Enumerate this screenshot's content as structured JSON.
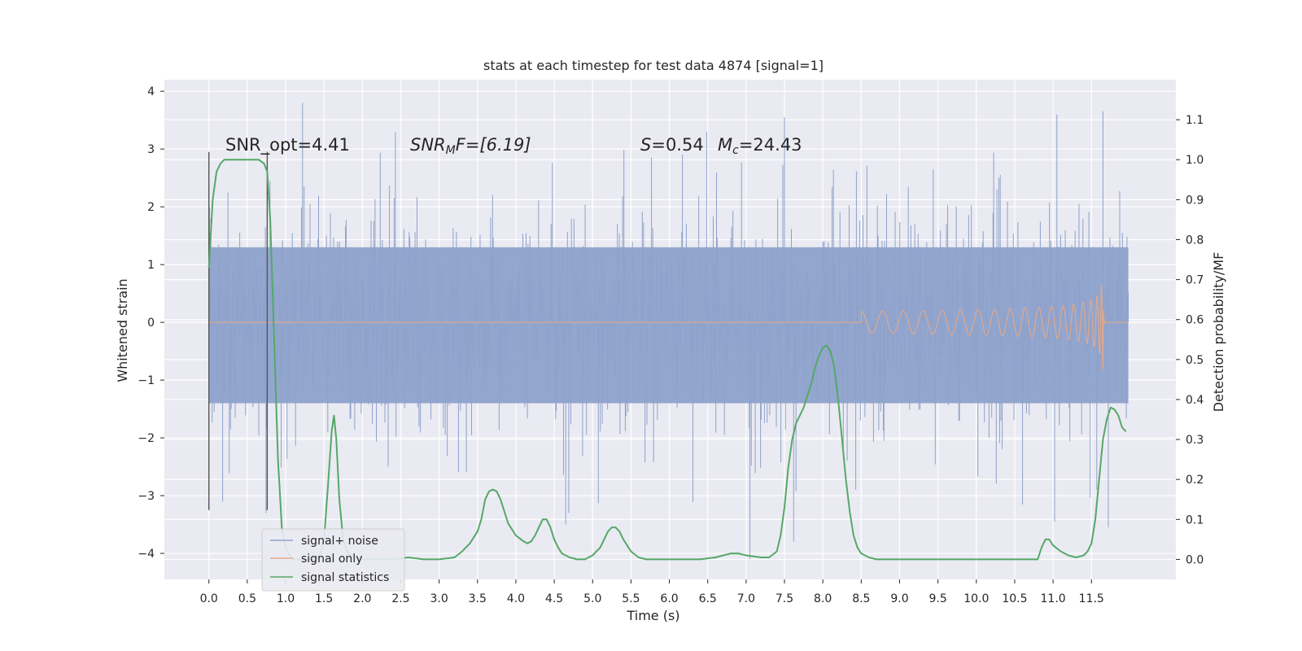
{
  "chart_data": {
    "type": "line",
    "title": "stats at each timestep for test data 4874 [signal=1]",
    "xlabel": "Time (s)",
    "ylabel": "Whitened strain",
    "y2label": "Detection probability/MF",
    "xlim": [
      -0.58,
      12.6
    ],
    "ylim": [
      -4.45,
      4.2
    ],
    "y2lim": [
      -0.05,
      1.2
    ],
    "x_ticks": [
      "0.0",
      "0.5",
      "1.0",
      "1.5",
      "2.0",
      "2.5",
      "3.0",
      "3.5",
      "4.0",
      "4.5",
      "5.0",
      "5.5",
      "6.0",
      "6.5",
      "7.0",
      "7.5",
      "8.0",
      "8.5",
      "9.0",
      "9.5",
      "10.0",
      "10.5",
      "11.0",
      "11.5"
    ],
    "y_ticks": [
      "4",
      "3",
      "2",
      "1",
      "0",
      "−1",
      "−2",
      "−3",
      "−4"
    ],
    "y2_ticks": [
      "1.1",
      "1.0",
      "0.9",
      "0.8",
      "0.7",
      "0.6",
      "0.5",
      "0.4",
      "0.3",
      "0.2",
      "0.1",
      "0.0"
    ],
    "grid": true,
    "annotations": {
      "snr_opt": "SNR_opt=4.41",
      "snr_mf_symbol": "SNR",
      "snr_mf_sub": "M",
      "snr_mf_rest": "F=[6.19]",
      "s_symbol": "S",
      "s_rest": "=0.54",
      "mc_symbol": "M",
      "mc_sub": "c",
      "mc_rest": "=24.43"
    },
    "vlines": [
      0.0,
      0.76
    ],
    "legend": {
      "position": "lower-left",
      "entries": [
        "signal+ noise",
        "signal only",
        "signal statistics"
      ]
    },
    "series": [
      {
        "name": "signal+ noise",
        "color": "#8ea2cb",
        "x_range": [
          0.0,
          11.98
        ],
        "typical_band": [
          -1.4,
          1.3
        ],
        "extremes": [
          {
            "x": 1.22,
            "y": 3.8
          },
          {
            "x": 11.65,
            "y": 3.65
          },
          {
            "x": 11.05,
            "y": 3.6
          },
          {
            "x": 7.5,
            "y": 3.55
          },
          {
            "x": 7.05,
            "y": -4.1
          },
          {
            "x": 7.62,
            "y": -3.8
          },
          {
            "x": 11.72,
            "y": -3.55
          },
          {
            "x": 4.65,
            "y": -3.5
          },
          {
            "x": 11.02,
            "y": -3.45
          }
        ]
      },
      {
        "name": "signal only",
        "color": "#e4a98c",
        "chirp_start": 8.5,
        "merger_time": 11.65,
        "peak_amplitude": 0.9
      },
      {
        "name": "signal statistics",
        "color": "#55a868",
        "axis": "right",
        "x": [
          0.0,
          0.05,
          0.1,
          0.15,
          0.2,
          0.3,
          0.5,
          0.65,
          0.72,
          0.76,
          0.8,
          0.85,
          0.9,
          0.95,
          1.0,
          1.05,
          1.1,
          1.2,
          1.3,
          1.4,
          1.45,
          1.5,
          1.55,
          1.6,
          1.63,
          1.66,
          1.7,
          1.75,
          1.8,
          1.85,
          1.9,
          2.0,
          2.2,
          2.4,
          2.6,
          2.8,
          3.0,
          3.2,
          3.3,
          3.4,
          3.5,
          3.55,
          3.6,
          3.65,
          3.7,
          3.75,
          3.8,
          3.85,
          3.9,
          4.0,
          4.1,
          4.15,
          4.2,
          4.25,
          4.3,
          4.35,
          4.4,
          4.45,
          4.5,
          4.55,
          4.6,
          4.7,
          4.8,
          4.9,
          5.0,
          5.1,
          5.2,
          5.25,
          5.3,
          5.35,
          5.4,
          5.5,
          5.6,
          5.7,
          5.8,
          6.0,
          6.2,
          6.4,
          6.6,
          6.8,
          6.9,
          7.0,
          7.2,
          7.3,
          7.4,
          7.45,
          7.5,
          7.55,
          7.6,
          7.65,
          7.7,
          7.75,
          7.8,
          7.85,
          7.9,
          7.95,
          8.0,
          8.05,
          8.1,
          8.15,
          8.2,
          8.25,
          8.3,
          8.35,
          8.4,
          8.45,
          8.5,
          8.6,
          8.7,
          8.8,
          9.0,
          9.5,
          10.0,
          10.5,
          10.8,
          10.85,
          10.9,
          10.95,
          11.0,
          11.1,
          11.2,
          11.3,
          11.4,
          11.45,
          11.5,
          11.55,
          11.6,
          11.65,
          11.7,
          11.75,
          11.8,
          11.85,
          11.9,
          11.95
        ],
        "y": [
          0.73,
          0.9,
          0.97,
          0.99,
          1.0,
          1.0,
          1.0,
          1.0,
          0.99,
          0.97,
          0.85,
          0.55,
          0.25,
          0.08,
          0.03,
          0.01,
          0.0,
          0.0,
          0.0,
          0.0,
          0.01,
          0.05,
          0.18,
          0.32,
          0.36,
          0.3,
          0.15,
          0.05,
          0.02,
          0.01,
          0.005,
          0.0,
          0.0,
          0.0,
          0.005,
          0.0,
          0.0,
          0.005,
          0.02,
          0.04,
          0.07,
          0.1,
          0.15,
          0.17,
          0.175,
          0.17,
          0.15,
          0.12,
          0.09,
          0.06,
          0.045,
          0.04,
          0.045,
          0.06,
          0.08,
          0.1,
          0.1,
          0.08,
          0.05,
          0.03,
          0.015,
          0.005,
          0.0,
          0.0,
          0.01,
          0.03,
          0.07,
          0.08,
          0.08,
          0.07,
          0.05,
          0.02,
          0.005,
          0.0,
          0.0,
          0.0,
          0.0,
          0.0,
          0.005,
          0.015,
          0.015,
          0.01,
          0.005,
          0.005,
          0.02,
          0.06,
          0.13,
          0.23,
          0.3,
          0.34,
          0.36,
          0.38,
          0.41,
          0.44,
          0.48,
          0.51,
          0.53,
          0.535,
          0.52,
          0.48,
          0.4,
          0.3,
          0.2,
          0.12,
          0.06,
          0.03,
          0.015,
          0.005,
          0.0,
          0.0,
          0.0,
          0.0,
          0.0,
          0.0,
          0.0,
          0.03,
          0.05,
          0.05,
          0.035,
          0.02,
          0.01,
          0.005,
          0.01,
          0.02,
          0.04,
          0.1,
          0.2,
          0.3,
          0.35,
          0.38,
          0.375,
          0.36,
          0.33,
          0.32
        ]
      }
    ]
  }
}
